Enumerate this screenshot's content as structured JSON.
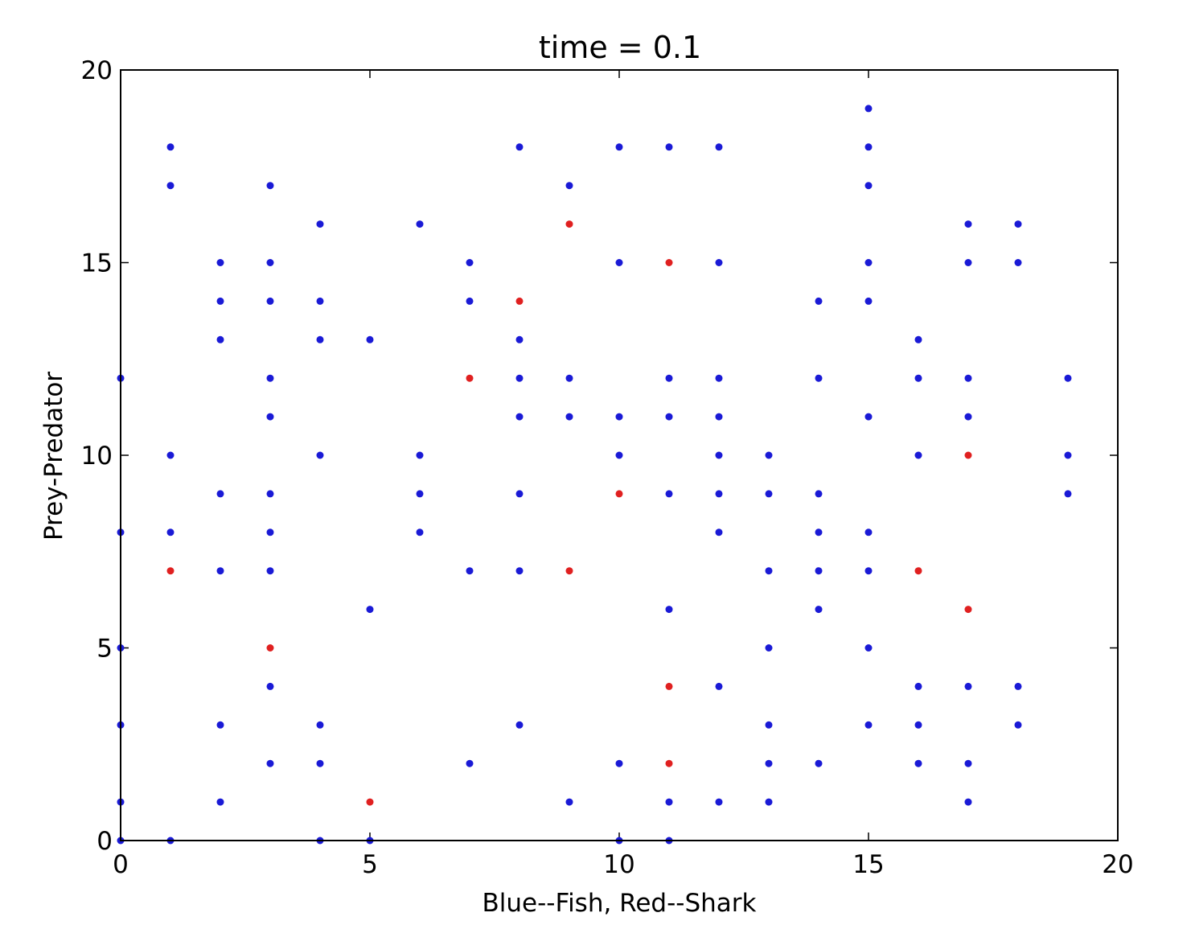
{
  "chart_data": {
    "type": "scatter",
    "title": "time = 0.1",
    "xlabel": "Blue--Fish, Red--Shark",
    "ylabel": "Prey-Predator",
    "xlim": [
      0,
      20
    ],
    "ylim": [
      0,
      20
    ],
    "xticks": [
      0,
      5,
      10,
      15,
      20
    ],
    "yticks": [
      0,
      5,
      10,
      15,
      20
    ],
    "grid": false,
    "series": [
      {
        "color": "#1a1ad6",
        "points": [
          [
            0,
            12
          ],
          [
            0,
            8
          ],
          [
            0,
            5
          ],
          [
            0,
            3
          ],
          [
            0,
            1
          ],
          [
            0,
            0
          ],
          [
            1,
            18
          ],
          [
            1,
            17
          ],
          [
            1,
            10
          ],
          [
            1,
            8
          ],
          [
            1,
            0
          ],
          [
            2,
            15
          ],
          [
            2,
            14
          ],
          [
            2,
            13
          ],
          [
            2,
            9
          ],
          [
            2,
            7
          ],
          [
            2,
            3
          ],
          [
            2,
            1
          ],
          [
            3,
            17
          ],
          [
            3,
            15
          ],
          [
            3,
            14
          ],
          [
            3,
            12
          ],
          [
            3,
            11
          ],
          [
            3,
            9
          ],
          [
            3,
            8
          ],
          [
            3,
            7
          ],
          [
            3,
            4
          ],
          [
            3,
            2
          ],
          [
            4,
            16
          ],
          [
            4,
            14
          ],
          [
            4,
            13
          ],
          [
            4,
            10
          ],
          [
            4,
            3
          ],
          [
            4,
            2
          ],
          [
            4,
            0
          ],
          [
            5,
            13
          ],
          [
            5,
            6
          ],
          [
            5,
            0
          ],
          [
            6,
            16
          ],
          [
            6,
            10
          ],
          [
            6,
            9
          ],
          [
            6,
            8
          ],
          [
            7,
            15
          ],
          [
            7,
            14
          ],
          [
            7,
            7
          ],
          [
            7,
            2
          ],
          [
            8,
            18
          ],
          [
            8,
            13
          ],
          [
            8,
            12
          ],
          [
            8,
            11
          ],
          [
            8,
            9
          ],
          [
            8,
            7
          ],
          [
            8,
            3
          ],
          [
            9,
            17
          ],
          [
            9,
            12
          ],
          [
            9,
            11
          ],
          [
            9,
            1
          ],
          [
            10,
            18
          ],
          [
            10,
            15
          ],
          [
            10,
            11
          ],
          [
            10,
            10
          ],
          [
            10,
            2
          ],
          [
            10,
            0
          ],
          [
            11,
            18
          ],
          [
            11,
            12
          ],
          [
            11,
            11
          ],
          [
            11,
            9
          ],
          [
            11,
            6
          ],
          [
            11,
            1
          ],
          [
            11,
            0
          ],
          [
            12,
            18
          ],
          [
            12,
            15
          ],
          [
            12,
            12
          ],
          [
            12,
            11
          ],
          [
            12,
            10
          ],
          [
            12,
            9
          ],
          [
            12,
            8
          ],
          [
            12,
            4
          ],
          [
            12,
            1
          ],
          [
            13,
            10
          ],
          [
            13,
            9
          ],
          [
            13,
            7
          ],
          [
            13,
            5
          ],
          [
            13,
            3
          ],
          [
            13,
            2
          ],
          [
            13,
            1
          ],
          [
            14,
            14
          ],
          [
            14,
            12
          ],
          [
            14,
            9
          ],
          [
            14,
            8
          ],
          [
            14,
            7
          ],
          [
            14,
            6
          ],
          [
            14,
            2
          ],
          [
            15,
            19
          ],
          [
            15,
            18
          ],
          [
            15,
            17
          ],
          [
            15,
            15
          ],
          [
            15,
            14
          ],
          [
            15,
            11
          ],
          [
            15,
            8
          ],
          [
            15,
            7
          ],
          [
            15,
            5
          ],
          [
            15,
            3
          ],
          [
            16,
            13
          ],
          [
            16,
            12
          ],
          [
            16,
            10
          ],
          [
            16,
            4
          ],
          [
            16,
            3
          ],
          [
            16,
            2
          ],
          [
            17,
            16
          ],
          [
            17,
            15
          ],
          [
            17,
            12
          ],
          [
            17,
            11
          ],
          [
            17,
            4
          ],
          [
            17,
            2
          ],
          [
            17,
            1
          ],
          [
            18,
            16
          ],
          [
            18,
            15
          ],
          [
            18,
            4
          ],
          [
            18,
            3
          ],
          [
            19,
            12
          ],
          [
            19,
            10
          ],
          [
            19,
            9
          ]
        ]
      },
      {
        "color": "#e02020",
        "points": [
          [
            1,
            7
          ],
          [
            3,
            5
          ],
          [
            5,
            1
          ],
          [
            7,
            12
          ],
          [
            8,
            14
          ],
          [
            9,
            16
          ],
          [
            9,
            7
          ],
          [
            10,
            9
          ],
          [
            11,
            15
          ],
          [
            11,
            4
          ],
          [
            11,
            2
          ],
          [
            16,
            7
          ],
          [
            17,
            10
          ],
          [
            17,
            6
          ]
        ]
      }
    ]
  }
}
